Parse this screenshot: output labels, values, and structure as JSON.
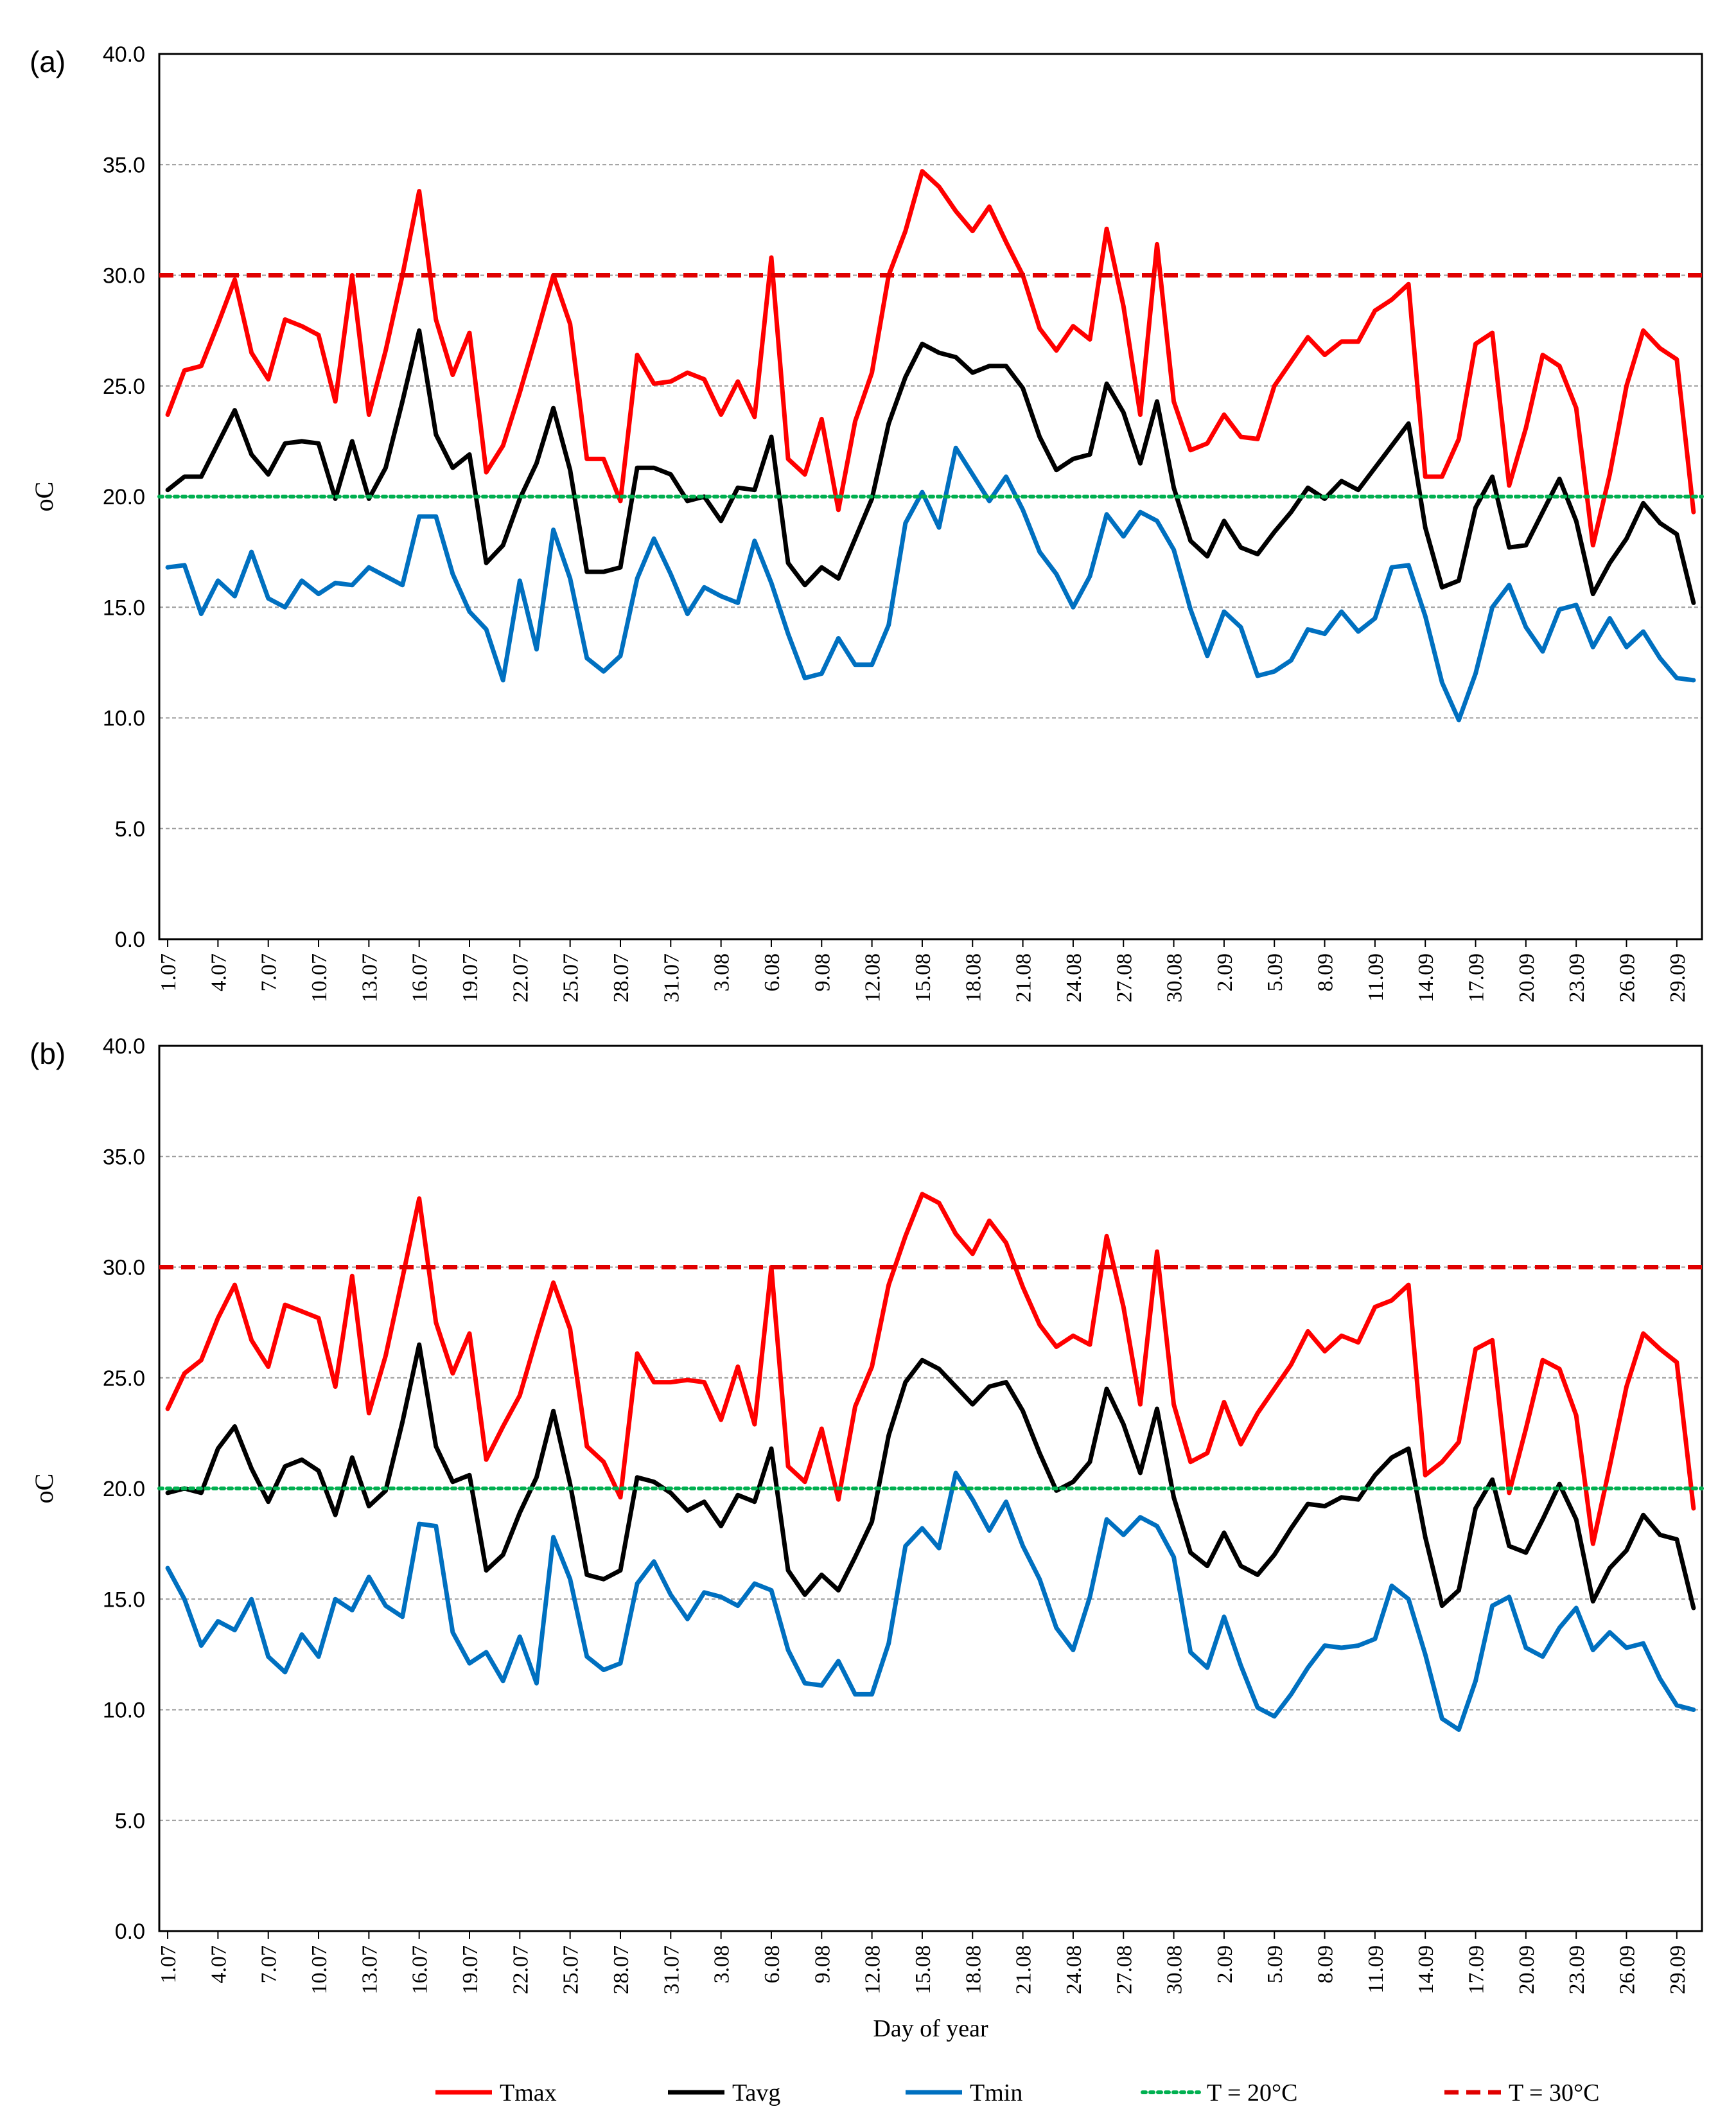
{
  "chart_data": [
    {
      "type": "line",
      "panel_label": "(a)",
      "ylabel": "oC",
      "xlabel": "",
      "ylim": [
        0,
        40
      ],
      "y_ticks": [
        "0.0",
        "5.0",
        "10.0",
        "15.0",
        "20.0",
        "25.0",
        "30.0",
        "35.0",
        "40.0"
      ],
      "grid": true,
      "x_tick_labels": [
        "1.07",
        "4.07",
        "7.07",
        "10.07",
        "13.07",
        "16.07",
        "19.07",
        "22.07",
        "25.07",
        "28.07",
        "31.07",
        "3.08",
        "6.08",
        "9.08",
        "12.08",
        "15.08",
        "18.08",
        "21.08",
        "24.08",
        "27.08",
        "30.08",
        "2.09",
        "5.09",
        "8.09",
        "11.09",
        "14.09",
        "17.09",
        "20.09",
        "23.09",
        "26.09",
        "29.09"
      ],
      "n_days": 92,
      "series": [
        {
          "name": "Tmax",
          "color": "#ff0000",
          "style": "solid",
          "values": [
            23.7,
            25.7,
            25.9,
            27.8,
            29.8,
            26.5,
            25.3,
            28.0,
            27.7,
            27.3,
            24.3,
            30.0,
            23.7,
            26.6,
            30.0,
            33.8,
            28.0,
            25.5,
            27.4,
            21.1,
            22.3,
            24.7,
            27.3,
            30.0,
            27.8,
            21.7,
            21.7,
            19.8,
            26.4,
            25.1,
            25.2,
            25.6,
            25.3,
            23.7,
            25.2,
            23.6,
            30.8,
            21.7,
            21.0,
            23.5,
            19.4,
            23.4,
            25.6,
            30.0,
            32.0,
            34.7,
            34.0,
            32.9,
            32.0,
            33.1,
            31.5,
            30.0,
            27.6,
            26.6,
            27.7,
            27.1,
            32.1,
            28.6,
            23.7,
            31.4,
            24.3,
            22.1,
            22.4,
            23.7,
            22.7,
            22.6,
            25.0,
            26.1,
            27.2,
            26.4,
            27.0,
            27.0,
            28.4,
            28.9,
            29.6,
            20.9,
            20.9,
            22.6,
            26.9,
            27.4,
            20.5,
            23.1,
            26.4,
            25.9,
            24.0,
            17.8,
            21.0,
            25.0,
            27.5,
            26.7,
            26.2,
            19.3
          ]
        },
        {
          "name": "Tavg",
          "color": "#000000",
          "style": "solid",
          "values": [
            20.3,
            20.9,
            20.9,
            22.4,
            23.9,
            21.9,
            21.0,
            22.4,
            22.5,
            22.4,
            19.9,
            22.5,
            19.9,
            21.3,
            24.3,
            27.5,
            22.8,
            21.3,
            21.9,
            17.0,
            17.8,
            19.9,
            21.5,
            24.0,
            21.2,
            16.6,
            16.6,
            16.8,
            21.3,
            21.3,
            21.0,
            19.8,
            20.0,
            18.9,
            20.4,
            20.3,
            22.7,
            17.0,
            16.0,
            16.8,
            16.3,
            18.1,
            19.9,
            23.3,
            25.4,
            26.9,
            26.5,
            26.3,
            25.6,
            25.9,
            25.9,
            24.9,
            22.7,
            21.2,
            21.7,
            21.9,
            25.1,
            23.8,
            21.5,
            24.3,
            20.4,
            18.0,
            17.3,
            18.9,
            17.7,
            17.4,
            18.4,
            19.3,
            20.4,
            19.9,
            20.7,
            20.3,
            21.3,
            22.3,
            23.3,
            18.6,
            15.9,
            16.2,
            19.5,
            20.9,
            17.7,
            17.8,
            19.3,
            20.8,
            18.9,
            15.6,
            17.0,
            18.1,
            19.7,
            18.8,
            18.3,
            15.2
          ]
        },
        {
          "name": "Tmin",
          "color": "#0070c0",
          "style": "solid",
          "values": [
            16.8,
            16.9,
            14.7,
            16.2,
            15.5,
            17.5,
            15.4,
            15.0,
            16.2,
            15.6,
            16.1,
            16.0,
            16.8,
            16.4,
            16.0,
            19.1,
            19.1,
            16.5,
            14.8,
            14.0,
            11.7,
            16.2,
            13.1,
            18.5,
            16.3,
            12.7,
            12.1,
            12.8,
            16.3,
            18.1,
            16.5,
            14.7,
            15.9,
            15.5,
            15.2,
            18.0,
            16.1,
            13.8,
            11.8,
            12.0,
            13.6,
            12.4,
            12.4,
            14.2,
            18.8,
            20.2,
            18.6,
            22.2,
            21.0,
            19.8,
            20.9,
            19.4,
            17.5,
            16.5,
            15.0,
            16.4,
            19.2,
            18.2,
            19.3,
            18.9,
            17.6,
            14.9,
            12.8,
            14.8,
            14.1,
            11.9,
            12.1,
            12.6,
            14.0,
            13.8,
            14.8,
            13.9,
            14.5,
            16.8,
            16.9,
            14.6,
            11.6,
            9.9,
            12.0,
            15.0,
            16.0,
            14.1,
            13.0,
            14.9,
            15.1,
            13.2,
            14.5,
            13.2,
            13.9,
            12.7,
            11.8,
            11.7
          ]
        },
        {
          "name": "T = 20°C",
          "color": "#00b050",
          "style": "dotted",
          "constant": 20.0
        },
        {
          "name": "T = 30°C",
          "color": "#e00000",
          "style": "dashed",
          "constant": 30.0
        }
      ]
    },
    {
      "type": "line",
      "panel_label": "(b)",
      "ylabel": "oC",
      "xlabel": "Day of year",
      "ylim": [
        0,
        40
      ],
      "y_ticks": [
        "0.0",
        "5.0",
        "10.0",
        "15.0",
        "20.0",
        "25.0",
        "30.0",
        "35.0",
        "40.0"
      ],
      "grid": true,
      "x_tick_labels": [
        "1.07",
        "4.07",
        "7.07",
        "10.07",
        "13.07",
        "16.07",
        "19.07",
        "22.07",
        "25.07",
        "28.07",
        "31.07",
        "3.08",
        "6.08",
        "9.08",
        "12.08",
        "15.08",
        "18.08",
        "21.08",
        "24.08",
        "27.08",
        "30.08",
        "2.09",
        "5.09",
        "8.09",
        "11.09",
        "14.09",
        "17.09",
        "20.09",
        "23.09",
        "26.09",
        "29.09"
      ],
      "n_days": 92,
      "series": [
        {
          "name": "Tmax",
          "color": "#ff0000",
          "style": "solid",
          "values": [
            23.6,
            25.2,
            25.8,
            27.7,
            29.2,
            26.7,
            25.5,
            28.3,
            28.0,
            27.7,
            24.6,
            29.6,
            23.4,
            26.0,
            29.5,
            33.1,
            27.5,
            25.2,
            27.0,
            21.3,
            22.8,
            24.2,
            26.8,
            29.3,
            27.2,
            21.9,
            21.2,
            19.6,
            26.1,
            24.8,
            24.8,
            24.9,
            24.8,
            23.1,
            25.5,
            22.9,
            30.0,
            21.0,
            20.3,
            22.7,
            19.5,
            23.7,
            25.5,
            29.2,
            31.4,
            33.3,
            32.9,
            31.5,
            30.6,
            32.1,
            31.1,
            29.1,
            27.4,
            26.4,
            26.9,
            26.5,
            31.4,
            28.2,
            23.8,
            30.7,
            23.8,
            21.2,
            21.6,
            23.9,
            22.0,
            23.4,
            24.5,
            25.6,
            27.1,
            26.2,
            26.9,
            26.6,
            28.2,
            28.5,
            29.2,
            20.6,
            21.2,
            22.1,
            26.3,
            26.7,
            19.8,
            22.7,
            25.8,
            25.4,
            23.3,
            17.5,
            21.0,
            24.6,
            27.0,
            26.3,
            25.7,
            19.1
          ]
        },
        {
          "name": "Tavg",
          "color": "#000000",
          "style": "solid",
          "values": [
            19.8,
            20.0,
            19.8,
            21.8,
            22.8,
            20.9,
            19.4,
            21.0,
            21.3,
            20.8,
            18.8,
            21.4,
            19.2,
            19.9,
            23.0,
            26.5,
            21.9,
            20.3,
            20.6,
            16.3,
            17.0,
            18.9,
            20.5,
            23.5,
            20.2,
            16.1,
            15.9,
            16.3,
            20.5,
            20.3,
            19.8,
            19.0,
            19.4,
            18.3,
            19.7,
            19.4,
            21.8,
            16.3,
            15.2,
            16.1,
            15.4,
            16.9,
            18.5,
            22.4,
            24.8,
            25.8,
            25.4,
            24.6,
            23.8,
            24.6,
            24.8,
            23.5,
            21.6,
            19.9,
            20.3,
            21.2,
            24.5,
            22.9,
            20.7,
            23.6,
            19.6,
            17.1,
            16.5,
            18.0,
            16.5,
            16.1,
            17.0,
            18.2,
            19.3,
            19.2,
            19.6,
            19.5,
            20.6,
            21.4,
            21.8,
            17.8,
            14.7,
            15.4,
            19.1,
            20.4,
            17.4,
            17.1,
            18.6,
            20.2,
            18.6,
            14.9,
            16.4,
            17.2,
            18.8,
            17.9,
            17.7,
            14.6
          ]
        },
        {
          "name": "Tmin",
          "color": "#0070c0",
          "style": "solid",
          "values": [
            16.4,
            15.0,
            12.9,
            14.0,
            13.6,
            15.0,
            12.4,
            11.7,
            13.4,
            12.4,
            15.0,
            14.5,
            16.0,
            14.7,
            14.2,
            18.4,
            18.3,
            13.5,
            12.1,
            12.6,
            11.3,
            13.3,
            11.2,
            17.8,
            15.9,
            12.4,
            11.8,
            12.1,
            15.7,
            16.7,
            15.2,
            14.1,
            15.3,
            15.1,
            14.7,
            15.7,
            15.4,
            12.7,
            11.2,
            11.1,
            12.2,
            10.7,
            10.7,
            13.0,
            17.4,
            18.2,
            17.3,
            20.7,
            19.5,
            18.1,
            19.4,
            17.4,
            15.9,
            13.7,
            12.7,
            15.1,
            18.6,
            17.9,
            18.7,
            18.3,
            16.9,
            12.6,
            11.9,
            14.2,
            12.0,
            10.1,
            9.7,
            10.7,
            11.9,
            12.9,
            12.8,
            12.9,
            13.2,
            15.6,
            15.0,
            12.5,
            9.6,
            9.1,
            11.3,
            14.7,
            15.1,
            12.8,
            12.4,
            13.7,
            14.6,
            12.7,
            13.5,
            12.8,
            13.0,
            11.4,
            10.2,
            10.0
          ]
        },
        {
          "name": "T = 20°C",
          "color": "#00b050",
          "style": "dotted",
          "constant": 20.0
        },
        {
          "name": "T = 30°C",
          "color": "#e00000",
          "style": "dashed",
          "constant": 30.0
        }
      ]
    }
  ],
  "legend": [
    {
      "label": "Tmax",
      "color": "#ff0000",
      "style": "solid"
    },
    {
      "label": "Tavg",
      "color": "#000000",
      "style": "solid"
    },
    {
      "label": "Tmin",
      "color": "#0070c0",
      "style": "solid"
    },
    {
      "label": "T = 20°C",
      "color": "#00b050",
      "style": "dotted"
    },
    {
      "label": "T = 30°C",
      "color": "#e00000",
      "style": "dashed"
    }
  ],
  "legend_position": "bottom-center"
}
